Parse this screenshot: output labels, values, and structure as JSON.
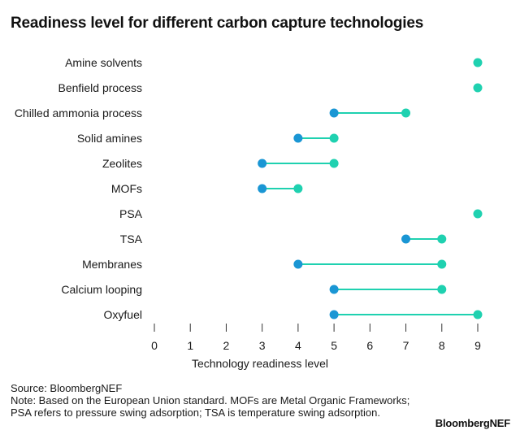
{
  "title": "Readiness level for different carbon capture technologies",
  "footer": {
    "source": "Source: BloombergNEF",
    "note": "Note: Based on the European Union standard. MOFs are Metal Organic Frameworks; PSA refers to pressure swing adsorption; TSA is temperature swing adsorption."
  },
  "brand": "BloombergNEF",
  "colors": {
    "low": "#1a96d4",
    "high": "#1fd1b0",
    "connector": "#1fd1b0"
  },
  "chart_data": {
    "type": "dumbbell",
    "xlabel": "Technology readiness level",
    "xlim": [
      0,
      9
    ],
    "xticks": [
      0,
      1,
      2,
      3,
      4,
      5,
      6,
      7,
      8,
      9
    ],
    "grid": false,
    "categories": [
      "Amine solvents",
      "Benfield process",
      "Chilled ammonia process",
      "Solid amines",
      "Zeolites",
      "MOFs",
      "PSA",
      "TSA",
      "Membranes",
      "Calcium looping",
      "Oxyfuel"
    ],
    "ranges": [
      {
        "low": 9,
        "high": 9
      },
      {
        "low": 9,
        "high": 9
      },
      {
        "low": 5,
        "high": 7
      },
      {
        "low": 4,
        "high": 5
      },
      {
        "low": 3,
        "high": 5
      },
      {
        "low": 3,
        "high": 4
      },
      {
        "low": 9,
        "high": 9
      },
      {
        "low": 7,
        "high": 8
      },
      {
        "low": 4,
        "high": 8
      },
      {
        "low": 5,
        "high": 8
      },
      {
        "low": 5,
        "high": 9
      }
    ]
  }
}
